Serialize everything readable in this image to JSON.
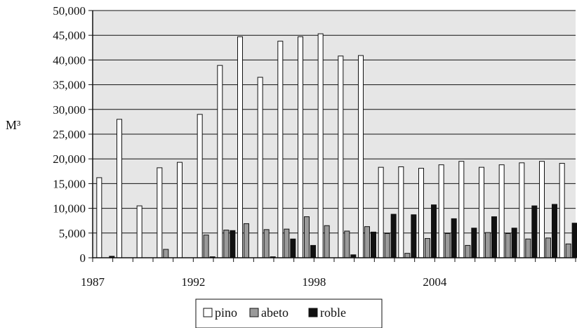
{
  "chart_data": {
    "type": "bar",
    "title": "",
    "xlabel": "",
    "ylabel": "M³",
    "ylim": [
      0,
      50000
    ],
    "yticks": [
      "0",
      "5,000",
      "10,000",
      "15,000",
      "20,000",
      "25,000",
      "30,000",
      "35,000",
      "40,000",
      "45,000",
      "50,000"
    ],
    "grid": true,
    "legend_position": "bottom-center",
    "colors": {
      "pino": "#ffffff",
      "abeto": "#9a9a9a",
      "roble": "#111111",
      "plot_bg": "#e6e6e6"
    },
    "categories": [
      "1987",
      "1988",
      "1989",
      "1990",
      "1991",
      "1992",
      "1993",
      "1994",
      "1995",
      "1996",
      "1997",
      "1998",
      "1999",
      "2000",
      "2001",
      "2002",
      "2003",
      "2004",
      "2005",
      "2006",
      "2007",
      "2008",
      "2009",
      "2010"
    ],
    "x_tick_labels": [
      {
        "category": "1987",
        "label": "1987"
      },
      {
        "category": "1992",
        "label": "1992"
      },
      {
        "category": "1998",
        "label": "1998"
      },
      {
        "category": "2004",
        "label": "2004"
      }
    ],
    "series": [
      {
        "name": "pino",
        "values": [
          16200,
          28000,
          10500,
          18200,
          19300,
          29000,
          38900,
          44700,
          36500,
          43800,
          44700,
          45300,
          40800,
          40900,
          18300,
          18400,
          18100,
          18800,
          19500,
          18300,
          18800,
          19200,
          19500,
          19100
        ]
      },
      {
        "name": "abeto",
        "values": [
          0,
          0,
          0,
          1700,
          0,
          4600,
          5600,
          6900,
          5700,
          5800,
          8300,
          6500,
          5400,
          6300,
          4900,
          900,
          3900,
          4900,
          2500,
          5100,
          4900,
          3800,
          4000,
          2800
        ]
      },
      {
        "name": "roble",
        "values": [
          300,
          0,
          0,
          0,
          0,
          200,
          5500,
          0,
          200,
          3800,
          2500,
          0,
          600,
          5200,
          8800,
          8700,
          10700,
          7900,
          6000,
          8300,
          6000,
          10500,
          10800,
          7000
        ]
      }
    ]
  }
}
